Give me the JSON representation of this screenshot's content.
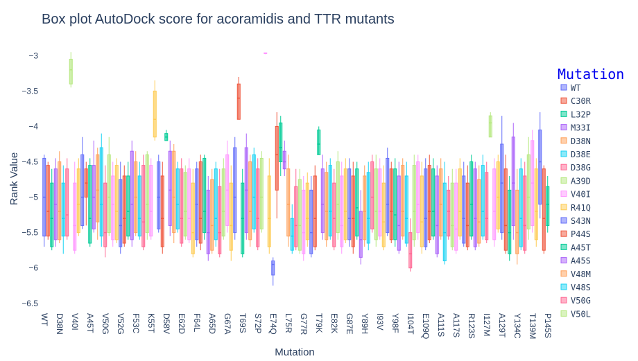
{
  "chart_data": {
    "type": "box",
    "title": "Box plot AutoDock score for acoramidis and TTR mutants",
    "x_label": "Mutation",
    "y_label": "Rank Value",
    "legend_title": "Mutation",
    "ylim": [
      -6.6,
      -2.85
    ],
    "yticks": [
      {
        "value": -3,
        "label": "−3"
      },
      {
        "value": -3.5,
        "label": "−3.5"
      },
      {
        "value": -4,
        "label": "−4"
      },
      {
        "value": -4.5,
        "label": "−4.5"
      },
      {
        "value": -5,
        "label": "−5"
      },
      {
        "value": -5.5,
        "label": "−5.5"
      },
      {
        "value": -6,
        "label": "−6"
      },
      {
        "value": -6.5,
        "label": "−6.5"
      }
    ],
    "colors": [
      "#636efa",
      "#EF553B",
      "#00cc96",
      "#ab63fa",
      "#FFA15A",
      "#19d3f3",
      "#FF6692",
      "#B6E880",
      "#FF97FF",
      "#FECB52"
    ],
    "series": [
      {
        "name": "WT",
        "color": "#636efa"
      },
      {
        "name": "C30R",
        "color": "#EF553B"
      },
      {
        "name": "L32P",
        "color": "#00cc96"
      },
      {
        "name": "M33I",
        "color": "#ab63fa"
      },
      {
        "name": "D38N",
        "color": "#FFA15A"
      },
      {
        "name": "D38E",
        "color": "#19d3f3"
      },
      {
        "name": "D38G",
        "color": "#FF6692"
      },
      {
        "name": "A39D",
        "color": "#B6E880"
      },
      {
        "name": "V40I",
        "color": "#FF97FF"
      },
      {
        "name": "R41Q",
        "color": "#FECB52"
      },
      {
        "name": "S43N",
        "color": "#636efa"
      },
      {
        "name": "P44S",
        "color": "#EF553B"
      },
      {
        "name": "A45T",
        "color": "#00cc96"
      },
      {
        "name": "A45S",
        "color": "#ab63fa"
      },
      {
        "name": "V48M",
        "color": "#FFA15A"
      },
      {
        "name": "V48S",
        "color": "#19d3f3"
      },
      {
        "name": "V50G",
        "color": "#FF6692"
      },
      {
        "name": "V50L",
        "color": "#B6E880"
      }
    ],
    "categories": [
      "WT",
      null,
      null,
      null,
      "D38N",
      null,
      null,
      null,
      "V40I",
      null,
      null,
      null,
      "A45T",
      null,
      null,
      null,
      "V50G",
      null,
      null,
      null,
      "V52G",
      null,
      null,
      null,
      "F53C",
      null,
      null,
      null,
      "K55T",
      null,
      null,
      null,
      "D58V",
      null,
      null,
      null,
      "E62D",
      null,
      null,
      null,
      "F64L",
      null,
      null,
      null,
      "A65D",
      null,
      null,
      null,
      "G67A",
      null,
      null,
      null,
      "T69S",
      null,
      null,
      null,
      "S72P",
      null,
      null,
      null,
      "E74Q",
      null,
      null,
      null,
      "L75R",
      null,
      null,
      null,
      "G77R",
      null,
      null,
      null,
      "T79K",
      null,
      null,
      null,
      "E82K",
      null,
      null,
      null,
      "G87E",
      null,
      null,
      null,
      "Y89H",
      null,
      null,
      null,
      "I93V",
      null,
      null,
      null,
      "Y98F",
      null,
      null,
      null,
      "I104T",
      null,
      null,
      null,
      "E109Q",
      null,
      null,
      null,
      "A111S",
      null,
      null,
      null,
      "A117S",
      null,
      null,
      null,
      "R123S",
      null,
      null,
      null,
      "I127M",
      null,
      null,
      null,
      "A129T",
      null,
      null,
      null,
      "Y134C",
      null,
      null,
      null,
      "T139M",
      null,
      null,
      null,
      "P145S"
    ],
    "boxes": [
      [
        -5.7,
        -5.55,
        -5.0,
        -4.45,
        -4.4
      ],
      [
        -5.6,
        -5.55,
        -5.2,
        -4.55,
        -4.5
      ],
      [
        -5.75,
        -5.7,
        -5.3,
        -4.8,
        -4.6
      ],
      [
        -5.7,
        -5.6,
        -5.1,
        -4.6,
        -4.45
      ],
      [
        -5.65,
        -5.6,
        -5.2,
        -4.5,
        -4.35
      ],
      [
        -5.8,
        -5.55,
        -5.3,
        -4.8,
        -4.55
      ],
      [
        -5.6,
        -5.55,
        -5.25,
        -4.6,
        -4.45
      ],
      [
        -3.45,
        -3.4,
        -3.2,
        -3.05,
        -2.95
      ],
      [
        -5.8,
        -5.75,
        -5.4,
        -4.8,
        -4.5
      ],
      [
        -5.55,
        -5.5,
        -5.1,
        -4.6,
        -4.45
      ],
      [
        -5.45,
        -5.4,
        -5.0,
        -4.4,
        -4.15
      ],
      [
        -5.4,
        -5.0,
        -4.8,
        -4.6,
        -4.5
      ],
      [
        -5.7,
        -5.65,
        -5.3,
        -4.55,
        -4.45
      ],
      [
        -5.5,
        -5.45,
        -5.0,
        -4.55,
        -4.2
      ],
      [
        -5.6,
        -5.35,
        -4.9,
        -4.4,
        -4.3
      ],
      [
        -5.7,
        -5.55,
        -5.1,
        -4.3,
        -4.1
      ],
      [
        -5.85,
        -5.7,
        -5.5,
        -4.8,
        -4.55
      ],
      [
        -5.55,
        -5.5,
        -5.0,
        -4.4,
        -4.15
      ],
      [
        -5.7,
        -5.6,
        -5.1,
        -4.7,
        -4.5
      ],
      [
        -5.65,
        -5.6,
        -5.2,
        -4.55,
        -4.45
      ],
      [
        -5.8,
        -5.7,
        -5.4,
        -4.75,
        -4.5
      ],
      [
        -5.7,
        -5.65,
        -5.3,
        -4.7,
        -4.55
      ],
      [
        -5.6,
        -5.55,
        -5.2,
        -4.7,
        -4.5
      ],
      [
        -5.7,
        -5.6,
        -5.1,
        -4.35,
        -4.2
      ],
      [
        -5.55,
        -5.5,
        -5.0,
        -4.5,
        -4.35
      ],
      [
        -5.6,
        -5.55,
        -5.3,
        -4.7,
        -4.5
      ],
      [
        -5.75,
        -5.7,
        -5.35,
        -4.55,
        -4.4
      ],
      [
        -5.6,
        -5.5,
        -5.1,
        -4.4,
        -4.35
      ],
      [
        -5.6,
        -5.55,
        -5.2,
        -4.55,
        -4.45
      ],
      [
        -4.2,
        -4.15,
        -3.9,
        -3.5,
        -3.35
      ],
      [
        -5.5,
        -5.45,
        -5.0,
        -4.5,
        -4.4
      ],
      [
        -5.8,
        -5.7,
        -5.3,
        -4.7,
        -4.5
      ],
      [
        -4.2,
        -4.2,
        -4.15,
        -4.1,
        -4.05
      ],
      [
        -5.55,
        -5.4,
        -4.9,
        -4.35,
        -4.2
      ],
      [
        -5.65,
        -5.5,
        -5.0,
        -4.35,
        -4.25
      ],
      [
        -5.5,
        -5.45,
        -5.1,
        -4.6,
        -4.5
      ],
      [
        -5.7,
        -5.65,
        -5.3,
        -4.6,
        -4.45
      ],
      [
        -5.6,
        -5.55,
        -5.2,
        -4.65,
        -4.55
      ],
      [
        -5.65,
        -5.6,
        -5.3,
        -4.6,
        -4.45
      ],
      [
        -5.85,
        -5.8,
        -5.5,
        -4.8,
        -4.6
      ],
      [
        -5.7,
        -5.6,
        -5.1,
        -4.6,
        -4.5
      ],
      [
        -5.75,
        -5.65,
        -5.3,
        -4.5,
        -4.4
      ],
      [
        -5.6,
        -5.5,
        -5.2,
        -4.45,
        -4.4
      ],
      [
        -5.9,
        -5.8,
        -5.5,
        -4.9,
        -4.7
      ],
      [
        -5.8,
        -5.75,
        -5.4,
        -4.75,
        -4.6
      ],
      [
        -5.7,
        -5.6,
        -5.3,
        -4.6,
        -4.5
      ],
      [
        -5.85,
        -5.8,
        -5.5,
        -4.85,
        -4.6
      ],
      [
        -5.6,
        -5.55,
        -5.2,
        -4.6,
        -4.45
      ],
      [
        -5.5,
        -5.4,
        -4.9,
        -4.4,
        -4.2
      ],
      [
        -5.9,
        -5.75,
        -5.4,
        -4.8,
        -4.55
      ],
      [
        -5.6,
        -5.5,
        -5.0,
        -4.3,
        -4.15
      ],
      [
        -3.9,
        -3.9,
        -3.6,
        -3.4,
        -3.3
      ],
      [
        -5.85,
        -5.8,
        -5.3,
        -4.8,
        -4.6
      ],
      [
        -5.6,
        -5.5,
        -4.9,
        -4.3,
        -4.1
      ],
      [
        -5.7,
        -5.6,
        -5.2,
        -4.5,
        -4.4
      ],
      [
        -5.5,
        -5.45,
        -5.0,
        -4.4,
        -4.3
      ],
      [
        -5.75,
        -5.7,
        -5.3,
        -4.6,
        -4.45
      ],
      [
        -5.5,
        -5.45,
        -5.0,
        -4.45,
        -4.35
      ],
      [
        -2.98,
        -2.97,
        -2.97,
        -2.96,
        -2.96
      ],
      [
        -5.8,
        -5.7,
        -5.3,
        -4.7,
        -4.45
      ],
      [
        -6.25,
        -6.1,
        -5.95,
        -5.9,
        -5.85
      ],
      [
        -5.3,
        -4.9,
        -4.4,
        -4.0,
        -3.8
      ],
      [
        -4.7,
        -4.5,
        -4.3,
        -3.95,
        -3.85
      ],
      [
        -4.7,
        -4.6,
        -4.5,
        -4.35,
        -4.2
      ],
      [
        -5.7,
        -5.55,
        -5.1,
        -4.6,
        -4.4
      ],
      [
        -5.8,
        -5.75,
        -5.55,
        -5.3,
        -5.1
      ],
      [
        -5.75,
        -5.7,
        -5.4,
        -4.85,
        -4.6
      ],
      [
        -5.8,
        -5.75,
        -5.4,
        -4.75,
        -4.6
      ],
      [
        -5.9,
        -5.8,
        -5.5,
        -4.9,
        -4.7
      ],
      [
        -5.7,
        -5.6,
        -5.3,
        -4.8,
        -4.65
      ],
      [
        -5.85,
        -5.8,
        -5.5,
        -4.9,
        -4.7
      ],
      [
        -5.75,
        -5.7,
        -5.3,
        -4.7,
        -4.55
      ],
      [
        -4.4,
        -4.4,
        -4.25,
        -4.05,
        -4.0
      ],
      [
        -5.6,
        -5.5,
        -5.1,
        -4.6,
        -4.4
      ],
      [
        -5.7,
        -5.6,
        -5.2,
        -4.65,
        -4.5
      ],
      [
        -5.6,
        -5.55,
        -5.2,
        -4.55,
        -4.45
      ],
      [
        -5.75,
        -5.7,
        -5.3,
        -4.8,
        -4.6
      ],
      [
        -5.6,
        -5.5,
        -5.1,
        -4.5,
        -4.35
      ],
      [
        -5.8,
        -5.7,
        -5.4,
        -4.7,
        -4.5
      ],
      [
        -5.65,
        -5.6,
        -5.2,
        -4.6,
        -4.45
      ],
      [
        -5.7,
        -5.6,
        -5.3,
        -4.6,
        -4.45
      ],
      [
        -5.8,
        -5.7,
        -5.3,
        -4.7,
        -4.5
      ],
      [
        -5.6,
        -5.55,
        -5.15,
        -4.6,
        -4.5
      ],
      [
        -5.95,
        -5.85,
        -5.6,
        -5.2,
        -4.9
      ],
      [
        -5.7,
        -5.6,
        -5.2,
        -4.7,
        -4.55
      ],
      [
        -5.75,
        -5.65,
        -5.3,
        -4.65,
        -4.5
      ],
      [
        -5.5,
        -5.45,
        -5.0,
        -4.5,
        -4.4
      ],
      [
        -5.7,
        -5.6,
        -5.2,
        -4.6,
        -4.4
      ],
      [
        -5.6,
        -5.55,
        -5.2,
        -4.6,
        -4.45
      ],
      [
        -5.75,
        -5.7,
        -5.35,
        -4.8,
        -4.55
      ],
      [
        -5.55,
        -5.5,
        -5.1,
        -4.45,
        -4.3
      ],
      [
        -5.65,
        -5.6,
        -5.2,
        -4.6,
        -4.5
      ],
      [
        -5.7,
        -5.6,
        -5.25,
        -4.6,
        -4.45
      ],
      [
        -5.8,
        -5.75,
        -5.4,
        -4.7,
        -4.5
      ],
      [
        -5.6,
        -5.55,
        -5.2,
        -4.55,
        -4.45
      ],
      [
        -5.7,
        -5.65,
        -5.3,
        -4.7,
        -4.5
      ],
      [
        -6.05,
        -6.0,
        -5.8,
        -5.5,
        -5.3
      ],
      [
        -5.7,
        -5.6,
        -5.2,
        -4.55,
        -4.4
      ],
      [
        -5.6,
        -5.5,
        -5.1,
        -4.5,
        -4.4
      ],
      [
        -5.8,
        -5.7,
        -5.35,
        -4.7,
        -4.5
      ],
      [
        -5.75,
        -5.7,
        -5.3,
        -4.6,
        -4.45
      ],
      [
        -5.65,
        -5.6,
        -5.2,
        -4.55,
        -4.4
      ],
      [
        -5.6,
        -5.55,
        -5.2,
        -4.6,
        -4.45
      ],
      [
        -5.85,
        -5.8,
        -5.4,
        -4.7,
        -4.55
      ],
      [
        -5.6,
        -5.55,
        -5.1,
        -4.6,
        -4.45
      ],
      [
        -5.95,
        -5.9,
        -5.5,
        -4.8,
        -4.5
      ],
      [
        -5.6,
        -5.55,
        -5.2,
        -4.9,
        -4.7
      ],
      [
        -5.75,
        -5.7,
        -5.4,
        -4.8,
        -4.6
      ],
      [
        -5.8,
        -5.75,
        -5.45,
        -4.8,
        -4.6
      ],
      [
        -5.6,
        -5.55,
        -5.2,
        -4.6,
        -4.45
      ],
      [
        -5.7,
        -5.65,
        -5.3,
        -4.7,
        -4.5
      ],
      [
        -5.75,
        -5.7,
        -5.4,
        -4.8,
        -4.55
      ],
      [
        -5.6,
        -5.55,
        -5.1,
        -4.5,
        -4.4
      ],
      [
        -5.75,
        -5.7,
        -5.3,
        -4.6,
        -4.5
      ],
      [
        -5.7,
        -5.65,
        -5.35,
        -4.75,
        -4.55
      ],
      [
        -5.6,
        -5.55,
        -5.2,
        -4.55,
        -4.4
      ],
      [
        -5.65,
        -5.6,
        -5.3,
        -4.65,
        -4.5
      ],
      [
        -4.15,
        -4.15,
        -3.95,
        -3.85,
        -3.8
      ],
      [
        -5.7,
        -5.6,
        -5.2,
        -4.6,
        -4.45
      ],
      [
        -5.5,
        -5.45,
        -5.0,
        -4.5,
        -4.4
      ],
      [
        -5.6,
        -5.5,
        -4.8,
        -4.25,
        -3.85
      ],
      [
        -5.8,
        -5.75,
        -5.4,
        -4.6,
        -4.4
      ],
      [
        -5.9,
        -5.8,
        -5.5,
        -4.9,
        -4.7
      ],
      [
        -5.6,
        -5.4,
        -4.8,
        -4.15,
        -3.95
      ],
      [
        -5.95,
        -5.8,
        -5.5,
        -4.9,
        -4.6
      ],
      [
        -5.75,
        -5.7,
        -5.3,
        -4.6,
        -4.45
      ],
      [
        -5.8,
        -5.75,
        -5.4,
        -4.7,
        -4.5
      ],
      [
        -5.6,
        -5.45,
        -5.0,
        -4.4,
        -4.15
      ],
      [
        -5.5,
        -5.4,
        -4.8,
        -4.2,
        -4.05
      ],
      [
        -5.7,
        -5.6,
        -5.2,
        -4.6,
        -4.45
      ],
      [
        -5.3,
        -5.1,
        -4.5,
        -4.05,
        -3.8
      ],
      [
        -5.8,
        -5.75,
        -5.3,
        -4.6,
        -4.55
      ],
      [
        -5.5,
        -5.4,
        -5.1,
        -4.85,
        -4.7
      ]
    ]
  }
}
